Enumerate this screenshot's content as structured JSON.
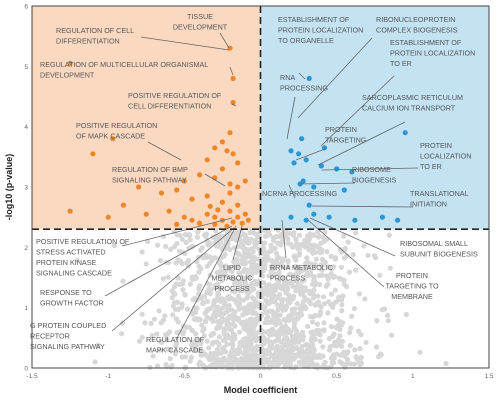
{
  "chart_data": {
    "type": "scatter",
    "xlabel": "Model coefficient",
    "ylabel": "-log10 (p-value)",
    "xlim": [
      -1.5,
      1.5
    ],
    "ylim": [
      0,
      6
    ],
    "x_ticks": [
      "-1.5",
      "-1",
      "-0.5",
      "0",
      "0.5",
      "1",
      "1.5"
    ],
    "y_ticks": [
      "0",
      "1",
      "2",
      "3",
      "4",
      "5",
      "6"
    ],
    "significance_threshold_y": 2.3,
    "colors": {
      "negative_region": "#fbd9c1",
      "positive_region": "#c3e2f2",
      "negative_points": "#f0862a",
      "positive_points": "#2b98d4",
      "nonsignificant_points": "#d7d7d7",
      "annotation_line": "#666666"
    },
    "series": [
      {
        "group": "significant-negative",
        "color": "#f0862a",
        "points": [
          [
            -0.2,
            5.3
          ],
          [
            -1.25,
            5.05
          ],
          [
            -0.18,
            4.8
          ],
          [
            -0.18,
            4.4
          ],
          [
            -0.97,
            3.8
          ],
          [
            -1.1,
            3.55
          ],
          [
            -0.2,
            3.9
          ],
          [
            -0.25,
            3.75
          ],
          [
            -0.3,
            3.65
          ],
          [
            -0.22,
            3.6
          ],
          [
            -0.18,
            3.55
          ],
          [
            -0.35,
            3.45
          ],
          [
            -0.15,
            3.4
          ],
          [
            -0.25,
            3.3
          ],
          [
            -0.5,
            3.1
          ],
          [
            -0.4,
            3.2
          ],
          [
            -0.3,
            3.15
          ],
          [
            -0.2,
            3.05
          ],
          [
            -0.15,
            3.0
          ],
          [
            -0.1,
            3.1
          ],
          [
            -0.8,
            3.0
          ],
          [
            -0.65,
            2.9
          ],
          [
            -0.55,
            2.95
          ],
          [
            -0.45,
            2.8
          ],
          [
            -0.35,
            2.85
          ],
          [
            -0.25,
            2.75
          ],
          [
            -0.2,
            2.9
          ],
          [
            -0.15,
            2.7
          ],
          [
            -1.25,
            2.6
          ],
          [
            -1.0,
            2.5
          ],
          [
            -0.9,
            2.7
          ],
          [
            -0.75,
            2.55
          ],
          [
            -0.6,
            2.6
          ],
          [
            -0.5,
            2.5
          ],
          [
            -0.45,
            2.45
          ],
          [
            -0.35,
            2.55
          ],
          [
            -0.3,
            2.5
          ],
          [
            -0.25,
            2.45
          ],
          [
            -0.2,
            2.6
          ],
          [
            -0.15,
            2.5
          ],
          [
            -0.12,
            2.4
          ],
          [
            -0.1,
            2.55
          ],
          [
            -0.3,
            2.38
          ],
          [
            -0.22,
            2.35
          ],
          [
            -0.18,
            2.42
          ],
          [
            -0.28,
            2.62
          ],
          [
            -0.4,
            2.4
          ],
          [
            -0.55,
            2.38
          ],
          [
            -0.08,
            2.45
          ],
          [
            -0.33,
            2.68
          ]
        ]
      },
      {
        "group": "significant-positive",
        "color": "#2b98d4",
        "points": [
          [
            0.32,
            4.8
          ],
          [
            0.27,
            3.8
          ],
          [
            0.2,
            3.6
          ],
          [
            0.42,
            3.65
          ],
          [
            0.95,
            3.9
          ],
          [
            0.25,
            3.55
          ],
          [
            0.3,
            3.45
          ],
          [
            0.22,
            3.4
          ],
          [
            0.4,
            3.35
          ],
          [
            0.5,
            3.3
          ],
          [
            0.6,
            3.25
          ],
          [
            0.28,
            3.1
          ],
          [
            0.26,
            3.05
          ],
          [
            0.35,
            3.0
          ],
          [
            0.55,
            2.95
          ],
          [
            0.32,
            2.7
          ],
          [
            0.2,
            2.5
          ],
          [
            0.3,
            2.45
          ],
          [
            0.45,
            2.5
          ],
          [
            0.62,
            2.45
          ],
          [
            0.8,
            2.5
          ],
          [
            0.9,
            2.45
          ],
          [
            0.35,
            2.55
          ]
        ]
      }
    ],
    "annotations": [
      {
        "label": [
          "TISSUE",
          "DEVELOPMENT"
        ],
        "side": "negative"
      },
      {
        "label": [
          "REGULATION OF CELL",
          "DIFFERENTIATION"
        ],
        "side": "negative"
      },
      {
        "label": [
          "REGULATION OF MULTICELLULAR ORGANISMAL",
          "DEVELOPMENT"
        ],
        "side": "negative"
      },
      {
        "label": [
          "POSITIVE REGULATION OF",
          "CELL DIFFERENTIATION"
        ],
        "side": "negative"
      },
      {
        "label": [
          "POSITIVE REGULATION",
          "OF MAPK CASCADE"
        ],
        "side": "negative"
      },
      {
        "label": [
          "REGULATION OF BMP",
          "SIGNALING PATHWAY"
        ],
        "side": "negative"
      },
      {
        "label": [
          "POSITIVE REGULATION OF",
          "STRESS ACTIVATED",
          "PROTEIN KINASE",
          "SIGNALING CASCADE"
        ],
        "side": "negative"
      },
      {
        "label": [
          "RESPONSE TO",
          "GROWTH FACTOR"
        ],
        "side": "negative"
      },
      {
        "label": [
          "G PROTEIN COUPLED",
          "RECEPTOR",
          "SIGNALING PATHWAY"
        ],
        "side": "negative"
      },
      {
        "label": [
          "REGULATION OF",
          "MAPK CASCADE"
        ],
        "side": "negative"
      },
      {
        "label": [
          "LIPID",
          "METABOLIC",
          "PROCESS"
        ],
        "side": "negative"
      },
      {
        "label": [
          "ESTABLISHMENT OF",
          "PROTEIN LOCALIZATION",
          "TO ORGANELLE"
        ],
        "side": "positive"
      },
      {
        "label": [
          "RIBONUCLEOPROTEIN",
          "COMPLEX BIOGENESIS"
        ],
        "side": "positive"
      },
      {
        "label": [
          "ESTABLISHMENT OF",
          "PROTEIN LOCALIZATION",
          "TO ER"
        ],
        "side": "positive"
      },
      {
        "label": [
          "RNA",
          "PROCESSING"
        ],
        "side": "positive"
      },
      {
        "label": [
          "SARCOPLASMIC RETICULUM",
          "CALCIUM ION TRANSPORT"
        ],
        "side": "positive"
      },
      {
        "label": [
          "PROTEIN",
          "TARGETING"
        ],
        "side": "positive"
      },
      {
        "label": [
          "PROTEIN",
          "LOCALIZATION",
          "TO ER"
        ],
        "side": "positive"
      },
      {
        "label": [
          "RIBOSOME",
          "BIOGENESIS"
        ],
        "side": "positive"
      },
      {
        "label": [
          "NCRNA PROCESSING"
        ],
        "side": "positive"
      },
      {
        "label": [
          "TRANSLATIONAL",
          "INITIATION"
        ],
        "side": "positive"
      },
      {
        "label": [
          "RIBOSOMAL SMALL",
          "SUBUNIT BIOGENESIS"
        ],
        "side": "positive"
      },
      {
        "label": [
          "RRNA METABOLIC",
          "PROCESS"
        ],
        "side": "positive"
      },
      {
        "label": [
          "PROTEIN",
          "TARGETING TO",
          "MEMBRANE"
        ],
        "side": "positive"
      }
    ]
  }
}
